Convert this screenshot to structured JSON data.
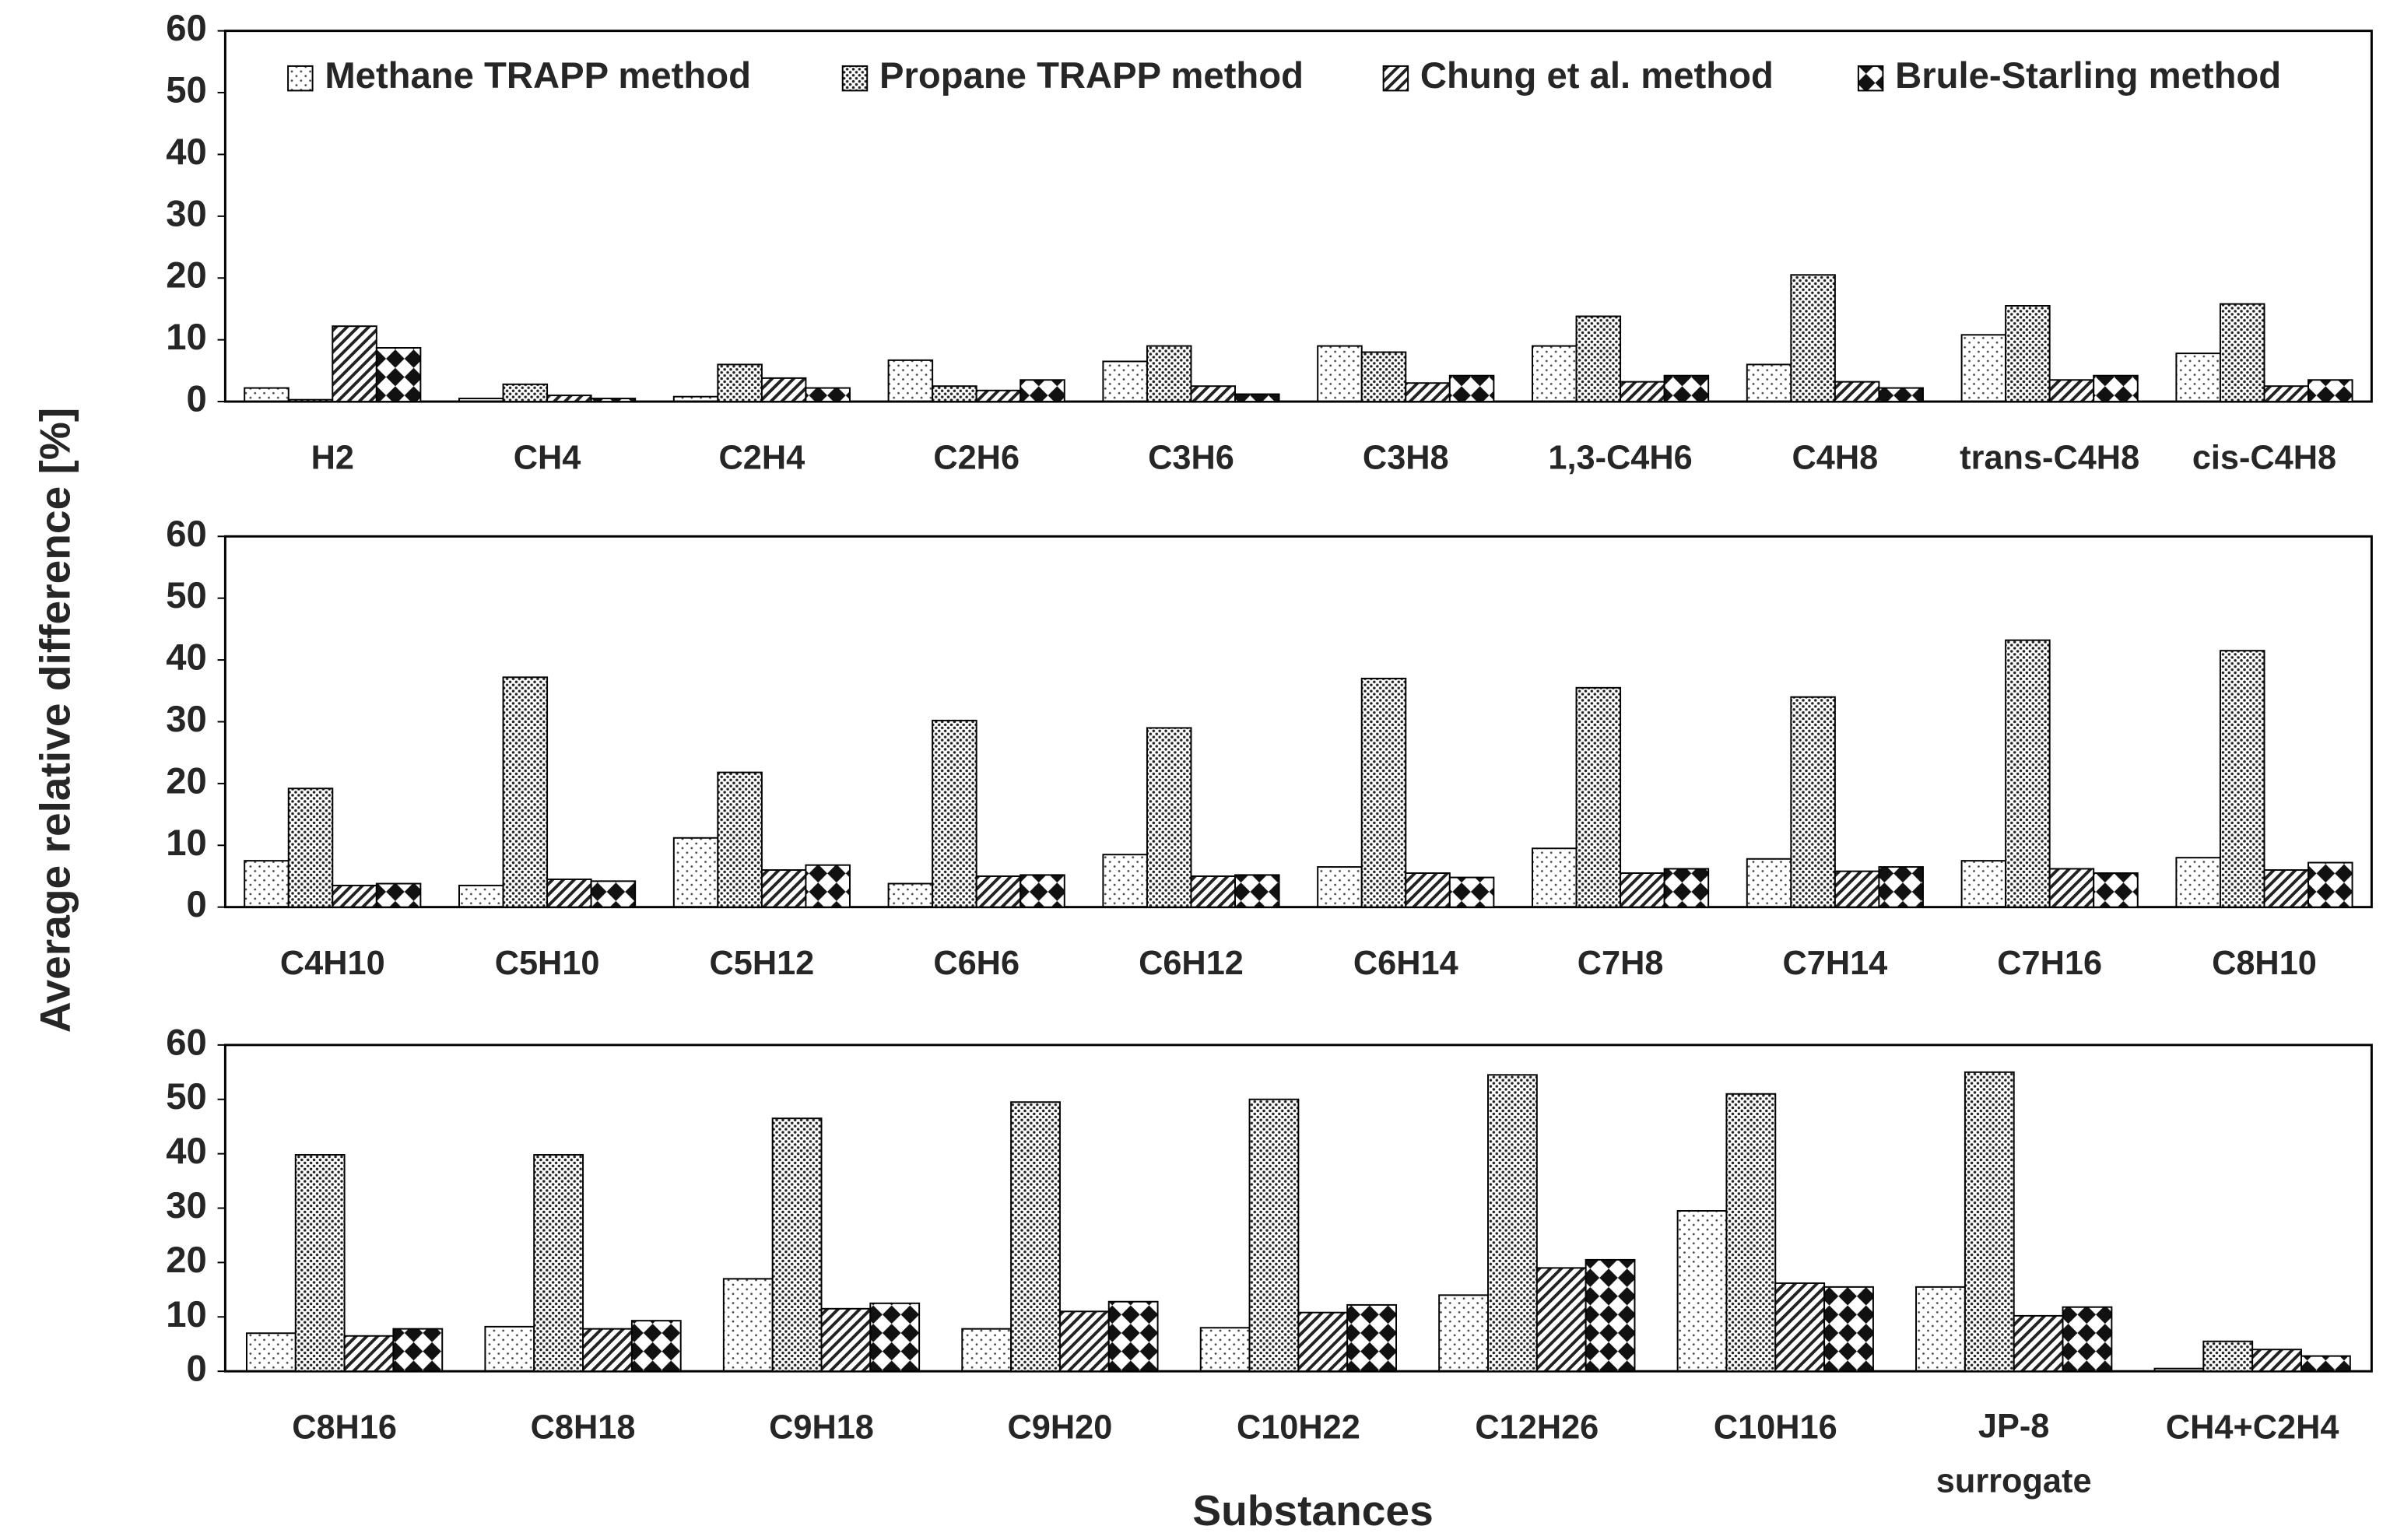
{
  "chart_data": [
    {
      "type": "bar",
      "ylabel": "Average relative difference [%]",
      "categories": [
        "H2",
        "CH4",
        "C2H4",
        "C2H6",
        "C3H6",
        "C3H8",
        "1,3-C4H6",
        "C4H8",
        "trans-C4H8",
        "cis-C4H8"
      ],
      "series": [
        {
          "name": "Methane TRAPP method",
          "color": "#ffffff",
          "pattern": "sparse-dots",
          "values": [
            2.2,
            0.5,
            0.8,
            6.7,
            6.5,
            9.0,
            9.0,
            6.0,
            10.8,
            7.8
          ]
        },
        {
          "name": "Propane TRAPP method",
          "color": "#ffffff",
          "pattern": "dense-dots",
          "values": [
            0.3,
            2.8,
            6.0,
            2.5,
            9.0,
            8.0,
            13.8,
            20.5,
            15.5,
            15.8
          ]
        },
        {
          "name": "Chung et al. method",
          "color": "#ffffff",
          "pattern": "hatch",
          "values": [
            12.2,
            1.0,
            3.8,
            1.8,
            2.5,
            3.0,
            3.2,
            3.2,
            3.5,
            2.5
          ]
        },
        {
          "name": "Brule-Starling method",
          "color": "#ffffff",
          "pattern": "diamonds",
          "values": [
            8.7,
            0.5,
            2.2,
            3.5,
            1.2,
            4.2,
            4.2,
            2.2,
            4.2,
            3.5
          ]
        }
      ],
      "ylim": [
        0,
        60
      ],
      "yticks": [
        0,
        10,
        20,
        30,
        40,
        50,
        60
      ],
      "legend": "top"
    },
    {
      "type": "bar",
      "categories": [
        "C4H10",
        "C5H10",
        "C5H12",
        "C6H6",
        "C6H12",
        "C6H14",
        "C7H8",
        "C7H14",
        "C7H16",
        "C8H10"
      ],
      "series": [
        {
          "color": "#ffffff",
          "pattern": "sparse-dots",
          "values": [
            7.5,
            3.5,
            11.2,
            3.8,
            8.5,
            6.5,
            9.5,
            7.8,
            7.5,
            8.0
          ]
        },
        {
          "color": "#ffffff",
          "pattern": "dense-dots",
          "values": [
            19.2,
            37.2,
            21.8,
            30.2,
            29.0,
            37.0,
            35.5,
            34.0,
            43.2,
            41.5
          ]
        },
        {
          "color": "#ffffff",
          "pattern": "hatch",
          "values": [
            3.5,
            4.5,
            6.0,
            5.0,
            5.0,
            5.5,
            5.5,
            5.8,
            6.2,
            6.0
          ]
        },
        {
          "color": "#ffffff",
          "pattern": "diamonds",
          "values": [
            3.8,
            4.2,
            6.8,
            5.2,
            5.2,
            4.8,
            6.2,
            6.5,
            5.5,
            7.2
          ]
        }
      ],
      "ylim": [
        0,
        60
      ],
      "yticks": [
        0,
        10,
        20,
        30,
        40,
        50,
        60
      ]
    },
    {
      "type": "bar",
      "xlabel": "Substances",
      "categories": [
        "C8H16",
        "C8H18",
        "C9H18",
        "C9H20",
        "C10H22",
        "C12H26",
        "C10H16",
        "JP-8 surrogate",
        "CH4+C2H4"
      ],
      "series": [
        {
          "color": "#ffffff",
          "pattern": "sparse-dots",
          "values": [
            7.0,
            8.2,
            17.0,
            7.8,
            8.0,
            14.0,
            29.5,
            15.5,
            0.5
          ]
        },
        {
          "color": "#ffffff",
          "pattern": "dense-dots",
          "values": [
            39.8,
            39.8,
            46.5,
            49.5,
            50.0,
            54.5,
            51.0,
            55.0,
            5.5
          ]
        },
        {
          "color": "#ffffff",
          "pattern": "hatch",
          "values": [
            6.5,
            7.8,
            11.5,
            11.0,
            10.8,
            19.0,
            16.2,
            10.2,
            4.0
          ]
        },
        {
          "color": "#ffffff",
          "pattern": "diamonds",
          "values": [
            7.8,
            9.3,
            12.5,
            12.8,
            12.2,
            20.5,
            15.5,
            11.8,
            2.8
          ]
        }
      ],
      "ylim": [
        0,
        60
      ],
      "yticks": [
        0,
        10,
        20,
        30,
        40,
        50,
        60
      ]
    }
  ]
}
